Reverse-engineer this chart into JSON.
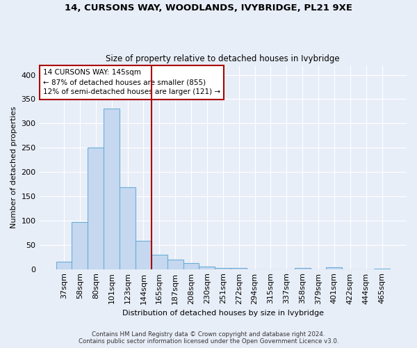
{
  "title": "14, CURSONS WAY, WOODLANDS, IVYBRIDGE, PL21 9XE",
  "subtitle": "Size of property relative to detached houses in Ivybridge",
  "xlabel": "Distribution of detached houses by size in Ivybridge",
  "ylabel": "Number of detached properties",
  "bar_color": "#c5d8f0",
  "bar_edge_color": "#6baed6",
  "background_color": "#e8eef8",
  "grid_color": "#ffffff",
  "categories": [
    "37sqm",
    "58sqm",
    "80sqm",
    "101sqm",
    "123sqm",
    "144sqm",
    "165sqm",
    "187sqm",
    "208sqm",
    "230sqm",
    "251sqm",
    "272sqm",
    "294sqm",
    "315sqm",
    "337sqm",
    "358sqm",
    "379sqm",
    "401sqm",
    "422sqm",
    "444sqm",
    "465sqm"
  ],
  "values": [
    16,
    97,
    250,
    330,
    168,
    58,
    29,
    19,
    12,
    5,
    3,
    3,
    0,
    0,
    0,
    3,
    0,
    4,
    0,
    0,
    1
  ],
  "annotation_text": "14 CURSONS WAY: 145sqm\n← 87% of detached houses are smaller (855)\n12% of semi-detached houses are larger (121) →",
  "annotation_box_color": "#ffffff",
  "annotation_box_edge_color": "#aa0000",
  "vline_color": "#aa0000",
  "ylim": [
    0,
    420
  ],
  "yticks": [
    0,
    50,
    100,
    150,
    200,
    250,
    300,
    350,
    400
  ],
  "footnote": "Contains HM Land Registry data © Crown copyright and database right 2024.\nContains public sector information licensed under the Open Government Licence v3.0.",
  "vline_index": 5.5
}
